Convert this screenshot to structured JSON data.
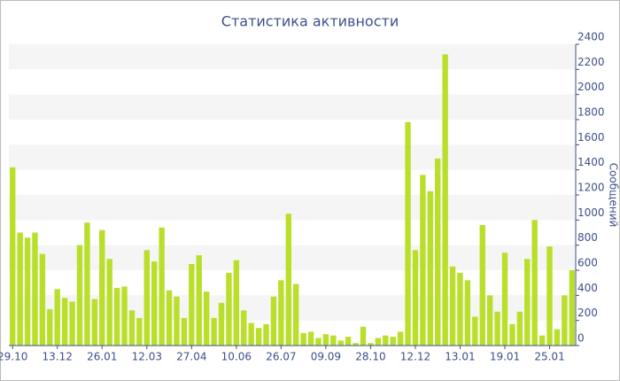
{
  "chart_data": {
    "type": "bar",
    "title": "Статистика активности",
    "y_label": "Сообщений",
    "categories": [
      "29.10",
      null,
      null,
      null,
      null,
      null,
      "13.12",
      null,
      null,
      null,
      null,
      null,
      "26.01",
      null,
      null,
      null,
      null,
      null,
      "12.03",
      null,
      null,
      null,
      null,
      null,
      "27.04",
      null,
      null,
      null,
      null,
      null,
      "10.06",
      null,
      null,
      null,
      null,
      null,
      "26.07",
      null,
      null,
      null,
      null,
      null,
      "09.09",
      null,
      null,
      null,
      null,
      null,
      "28.10",
      null,
      null,
      null,
      null,
      null,
      "12.12",
      null,
      null,
      null,
      null,
      null,
      "13.01",
      null,
      null,
      null,
      null,
      null,
      "19.01",
      null,
      null,
      null,
      null,
      null,
      "25.01",
      null,
      null,
      null
    ],
    "values": [
      1420,
      900,
      860,
      900,
      730,
      290,
      450,
      380,
      350,
      800,
      980,
      370,
      920,
      690,
      460,
      470,
      280,
      220,
      760,
      670,
      940,
      440,
      390,
      220,
      650,
      720,
      430,
      220,
      340,
      580,
      680,
      280,
      180,
      140,
      170,
      390,
      520,
      1050,
      490,
      100,
      110,
      60,
      90,
      80,
      40,
      70,
      20,
      150,
      20,
      60,
      80,
      70,
      110,
      1780,
      760,
      1360,
      1230,
      1490,
      2320,
      630,
      580,
      520,
      230,
      960,
      400,
      270,
      740,
      170,
      270,
      690,
      1000,
      80,
      790,
      130,
      400,
      600
    ],
    "color": "#b9df2b",
    "ylim": [
      0,
      2400
    ],
    "yticks": [
      0,
      200,
      400,
      600,
      800,
      1000,
      1200,
      1400,
      1600,
      1800,
      2000,
      2200,
      2400
    ],
    "grid": true,
    "y_axis_side": "right"
  }
}
